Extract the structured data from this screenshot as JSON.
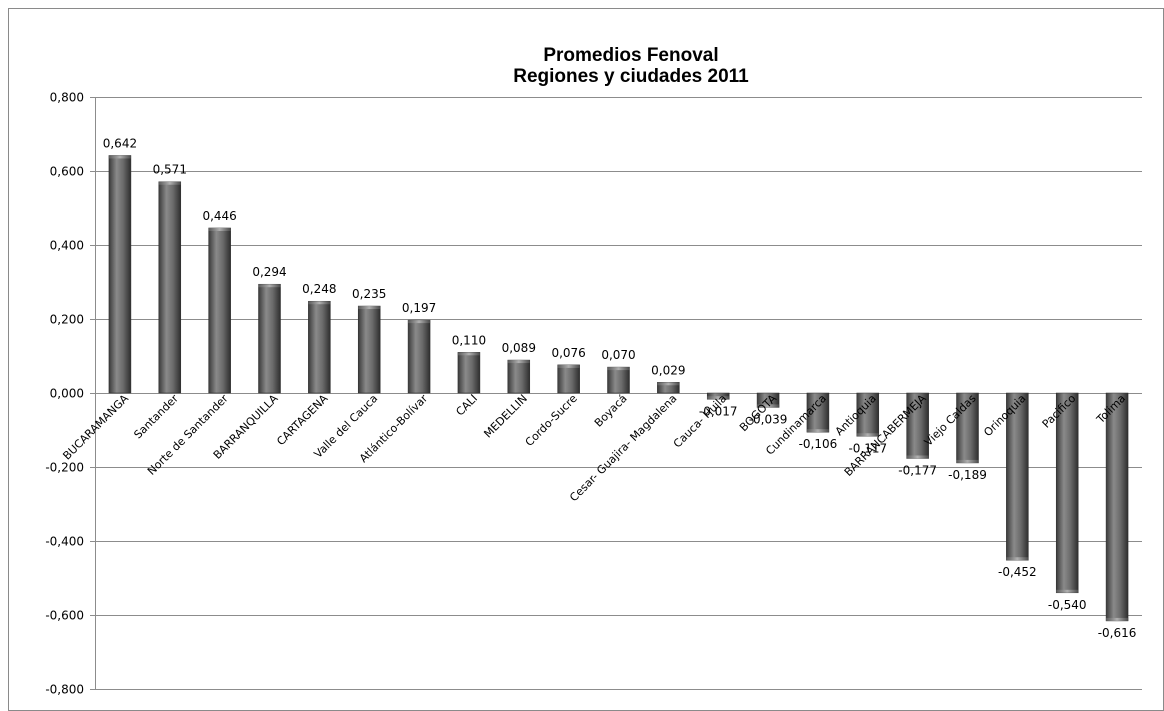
{
  "chart_data": {
    "type": "bar",
    "title": [
      "Promedios Fenoval",
      "Regiones y ciudades 2011"
    ],
    "categories": [
      "BUCARAMANGA",
      "Santander",
      "Norte de Santander",
      "BARRANQUILLA",
      "CARTAGENA",
      "Valle del Cauca",
      "Atlántico-Bolívar",
      "CALI",
      "MEDELLIN",
      "Cordo-Sucre",
      "Boyacá",
      "Cesar- Guajira- Magdalena",
      "Cauca- Huila",
      "BOGOTA",
      "Cundinamarca",
      "Antioquia",
      "BARRANCABERMEJA",
      "Viejo Caldas",
      "Orinoquia",
      "Pacifico",
      "Tolima"
    ],
    "values": [
      0.642,
      0.571,
      0.446,
      0.294,
      0.248,
      0.235,
      0.197,
      0.11,
      0.089,
      0.076,
      0.07,
      0.029,
      -0.017,
      -0.039,
      -0.106,
      -0.117,
      -0.177,
      -0.189,
      -0.452,
      -0.54,
      -0.616
    ],
    "value_labels": [
      "0,642",
      "0,571",
      "0,446",
      "0,294",
      "0,248",
      "0,235",
      "0,197",
      "0,110",
      "0,089",
      "0,076",
      "0,070",
      "0,029",
      "-0,017",
      "-0,039",
      "-0,106",
      "-0,117",
      "-0,177",
      "-0,189",
      "-0,452",
      "-0,540",
      "-0,616"
    ],
    "yticks": [
      0.8,
      0.6,
      0.4,
      0.2,
      0.0,
      -0.2,
      -0.4,
      -0.6,
      -0.8
    ],
    "ytick_labels": [
      "0,800",
      "0,600",
      "0,400",
      "0,200",
      "0,000",
      "-0,200",
      "-0,400",
      "-0,600",
      "-0,800"
    ],
    "ylim": [
      -0.8,
      0.8
    ],
    "xlabel": "",
    "ylabel": "",
    "grid": true,
    "legend": "none",
    "bar_color": "#555555"
  }
}
